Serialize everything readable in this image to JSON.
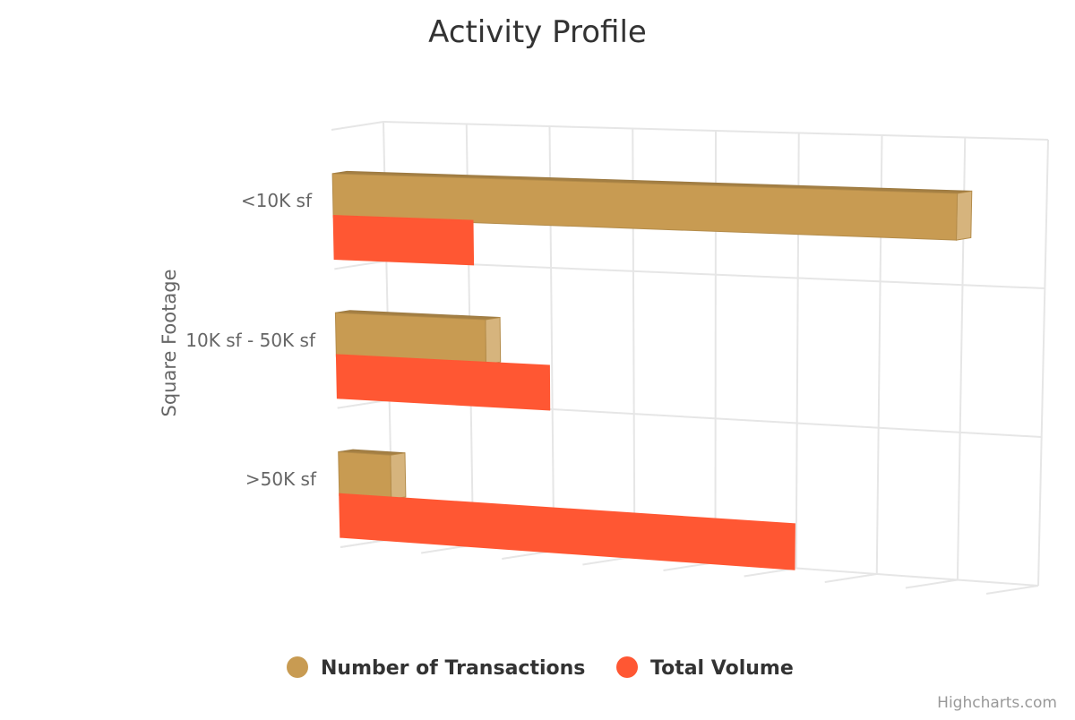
{
  "chart_data": {
    "type": "bar",
    "orientation": "horizontal",
    "three_d": true,
    "title": "Activity Profile",
    "ylabel": "Square Footage",
    "xlabel": "",
    "categories": [
      "<10K sf",
      "10K sf - 50K sf",
      ">50K sf"
    ],
    "series": [
      {
        "name": "Number of Transactions",
        "color": "#C89B52",
        "values": [
          165,
          40,
          14
        ]
      },
      {
        "name": "Total Volume",
        "color": "#FF5733",
        "values": [
          37,
          57,
          123
        ]
      }
    ],
    "xlim": [
      0,
      175
    ],
    "grid": true,
    "legend": "bottom-center"
  },
  "credits": "Highcharts.com"
}
